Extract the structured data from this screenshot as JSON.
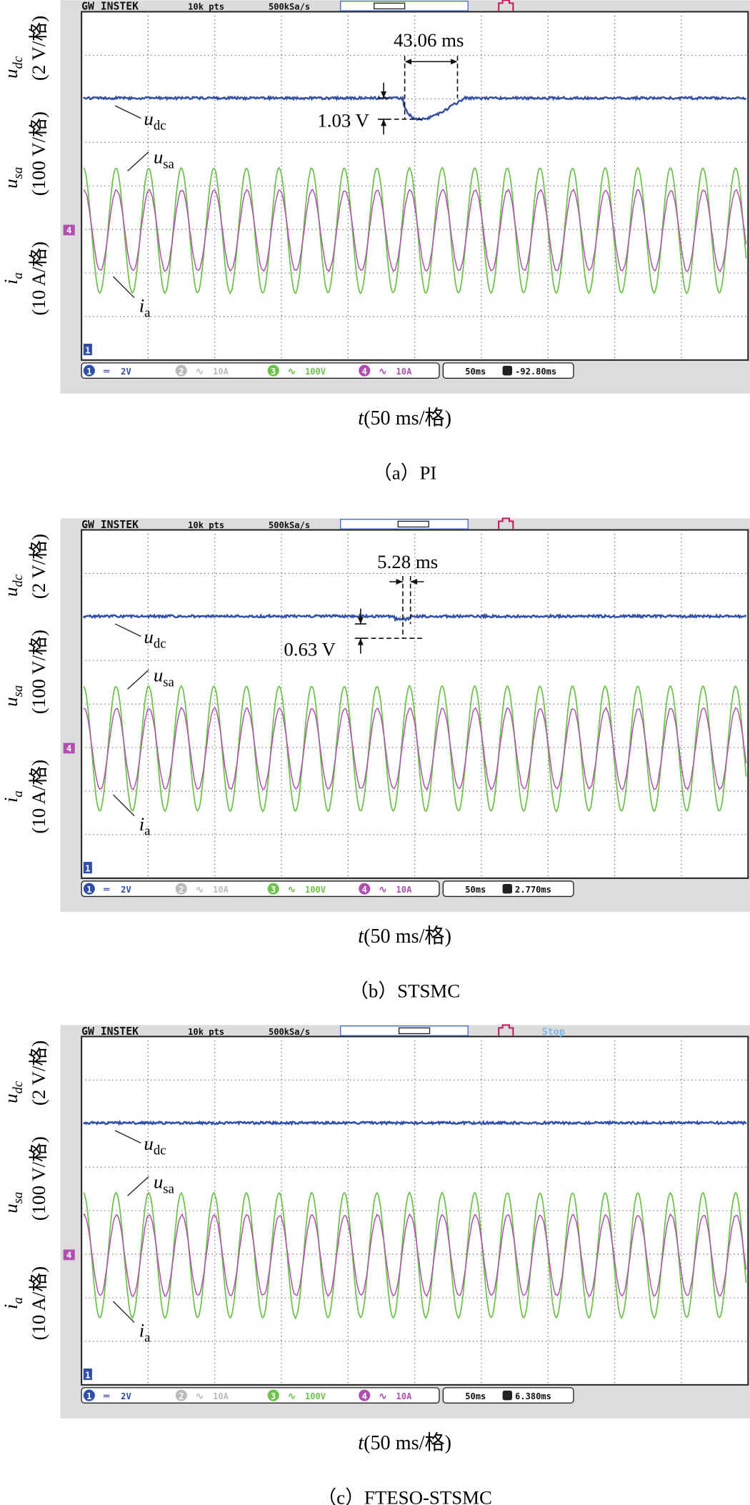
{
  "panels": [
    {
      "header": {
        "brand": "GW INSTEK",
        "points": "10k pts",
        "rate": "500kSa/s"
      },
      "y_labels": [
        {
          "var": "u",
          "sub": "dc",
          "scale": "(2 V/格)"
        },
        {
          "var": "u",
          "sub": "sa",
          "scale": "(100 V/格)"
        },
        {
          "var": "i",
          "sub": "a",
          "scale": "(10 A/格)"
        }
      ],
      "trace_labels": [
        {
          "var": "u",
          "sub": "dc"
        },
        {
          "var": "u",
          "sub": "sa"
        },
        {
          "var": "i",
          "sub": "a"
        }
      ],
      "annotations": {
        "time": "43.06 ms",
        "voltage": "1.03 V"
      },
      "markers": [
        "4",
        "1"
      ],
      "channels": [
        {
          "num": "1",
          "scale": "2V"
        },
        {
          "num": "2",
          "scale": "10A"
        },
        {
          "num": "3",
          "scale": "100V"
        },
        {
          "num": "4",
          "scale": "10A"
        }
      ],
      "timebase": "50ms",
      "offset": "-92.80ms",
      "x_label": {
        "var": "t",
        "unit": "(50 ms/格)"
      },
      "caption": "（a）PI"
    },
    {
      "header": {
        "brand": "GW INSTEK",
        "points": "10k pts",
        "rate": "500kSa/s"
      },
      "y_labels": [
        {
          "var": "u",
          "sub": "dc",
          "scale": "(2 V/格)"
        },
        {
          "var": "u",
          "sub": "sa",
          "scale": "(100 V/格)"
        },
        {
          "var": "i",
          "sub": "a",
          "scale": "(10 A/格)"
        }
      ],
      "trace_labels": [
        {
          "var": "u",
          "sub": "dc"
        },
        {
          "var": "u",
          "sub": "sa"
        },
        {
          "var": "i",
          "sub": "a"
        }
      ],
      "annotations": {
        "time": "5.28 ms",
        "voltage": "0.63 V"
      },
      "markers": [
        "4",
        "1"
      ],
      "channels": [
        {
          "num": "1",
          "scale": "2V"
        },
        {
          "num": "2",
          "scale": "10A"
        },
        {
          "num": "3",
          "scale": "100V"
        },
        {
          "num": "4",
          "scale": "10A"
        }
      ],
      "timebase": "50ms",
      "offset": "2.770ms",
      "x_label": {
        "var": "t",
        "unit": "(50 ms/格)"
      },
      "caption": "（b）STSMC"
    },
    {
      "header": {
        "brand": "GW INSTEK",
        "points": "10k pts",
        "rate": "500kSa/s",
        "status": "Stop"
      },
      "y_labels": [
        {
          "var": "u",
          "sub": "dc",
          "scale": "(2 V/格)"
        },
        {
          "var": "u",
          "sub": "sa",
          "scale": "(100 V/格)"
        },
        {
          "var": "i",
          "sub": "a",
          "scale": "(10 A/格)"
        }
      ],
      "trace_labels": [
        {
          "var": "u",
          "sub": "dc"
        },
        {
          "var": "u",
          "sub": "sa"
        },
        {
          "var": "i",
          "sub": "a"
        }
      ],
      "markers": [
        "4",
        "1"
      ],
      "channels": [
        {
          "num": "1",
          "scale": "2V"
        },
        {
          "num": "2",
          "scale": "10A"
        },
        {
          "num": "3",
          "scale": "100V"
        },
        {
          "num": "4",
          "scale": "10A"
        }
      ],
      "timebase": "50ms",
      "offset": "6.380ms",
      "x_label": {
        "var": "t",
        "unit": "(50 ms/格)"
      },
      "caption": "（c）FTESO-STSMC"
    }
  ]
}
